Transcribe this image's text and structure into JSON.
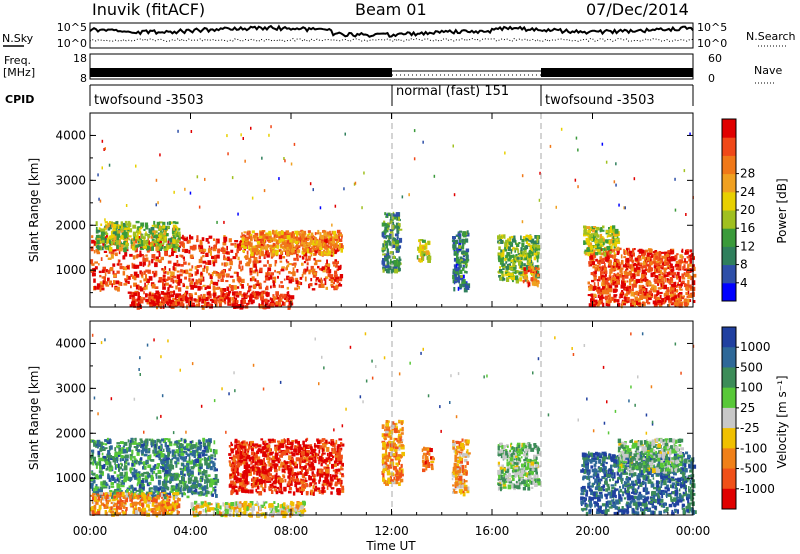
{
  "header": {
    "station": "Inuvik (fitACF)",
    "beam": "Beam 01",
    "date": "07/Dec/2014"
  },
  "status_panels": {
    "nsky_label": "N.Sky",
    "nsky_ticks": [
      "10^5",
      "10^0"
    ],
    "nsearch_label": "N.Search",
    "freq_label_1": "Freq.",
    "freq_label_2": "[MHz]",
    "freq_ticks": [
      "18",
      "8"
    ],
    "nave_ticks": [
      "60",
      "0"
    ],
    "nave_label": "Nave",
    "cpid_label": "CPID",
    "cpid_segments": [
      {
        "label": "twofsound -3503",
        "start_hour": 0,
        "end_hour": 12
      },
      {
        "label": "normal (fast) 151",
        "start_hour": 12,
        "end_hour": 18
      },
      {
        "label": "twofsound -3503",
        "start_hour": 18,
        "end_hour": 24
      }
    ]
  },
  "chart_data": [
    {
      "type": "heatmap",
      "title": "",
      "xlabel": "",
      "ylabel": "Slant Range [km]",
      "xlim": [
        0,
        24
      ],
      "ylim": [
        180,
        4500
      ],
      "yticks": [
        "1000",
        "2000",
        "3000",
        "4000"
      ],
      "colorbar_label": "Power [dB]",
      "colorbar_ticks": [
        "4",
        "8",
        "12",
        "16",
        "20",
        "24",
        "28"
      ],
      "colorbar_colors": [
        "#0000ff",
        "#2e4fa8",
        "#2f7f5c",
        "#3a9a3a",
        "#a0c020",
        "#e8d000",
        "#f0a020",
        "#f07818",
        "#f04818",
        "#e00000"
      ],
      "dashed_markers_hour": [
        12,
        18
      ],
      "echo_regions": [
        {
          "t0": 0.0,
          "t1": 10.0,
          "r0": 600,
          "r1": 1800,
          "level": 0.85
        },
        {
          "t0": 0.2,
          "t1": 3.5,
          "r0": 1500,
          "r1": 2100,
          "level": 0.45
        },
        {
          "t0": 1.5,
          "t1": 8.0,
          "r0": 220,
          "r1": 550,
          "level": 0.9
        },
        {
          "t0": 6.0,
          "t1": 10.0,
          "r0": 1400,
          "r1": 1900,
          "level": 0.7
        },
        {
          "t0": 11.6,
          "t1": 12.3,
          "r0": 1000,
          "r1": 2300,
          "level": 0.3
        },
        {
          "t0": 13.0,
          "t1": 13.5,
          "r0": 1200,
          "r1": 1700,
          "level": 0.55
        },
        {
          "t0": 14.4,
          "t1": 15.0,
          "r0": 600,
          "r1": 1900,
          "level": 0.25
        },
        {
          "t0": 16.2,
          "t1": 17.8,
          "r0": 800,
          "r1": 1800,
          "level": 0.4
        },
        {
          "t0": 17.2,
          "t1": 17.8,
          "r0": 700,
          "r1": 1100,
          "level": 0.8
        },
        {
          "t0": 19.8,
          "t1": 24.0,
          "r0": 250,
          "r1": 1500,
          "level": 0.85
        },
        {
          "t0": 19.6,
          "t1": 21.0,
          "r0": 1400,
          "r1": 2000,
          "level": 0.5
        }
      ]
    },
    {
      "type": "heatmap",
      "title": "",
      "xlabel": "Time UT",
      "ylabel": "Slant Range [km]",
      "xlim": [
        0,
        24
      ],
      "ylim": [
        180,
        4500
      ],
      "xticks": [
        "00:00",
        "04:00",
        "08:00",
        "12:00",
        "16:00",
        "20:00",
        "00:00"
      ],
      "yticks": [
        "1000",
        "2000",
        "3000",
        "4000"
      ],
      "colorbar_label": "Velocity [m s⁻¹]",
      "colorbar_ticks": [
        "1000",
        "500",
        "100",
        "25",
        "-25",
        "-100",
        "-500",
        "-1000"
      ],
      "colorbar_colors": [
        "#2040a0",
        "#2e6898",
        "#3c8c58",
        "#58c838",
        "#c8c8c8",
        "#f0c000",
        "#f08018",
        "#f05018",
        "#e00000"
      ],
      "dashed_markers_hour": [
        12,
        18
      ],
      "echo_regions": [
        {
          "t0": 0.0,
          "t1": 5.0,
          "r0": 600,
          "r1": 1900,
          "level": 0.75
        },
        {
          "t0": 5.5,
          "t1": 10.0,
          "r0": 700,
          "r1": 1900,
          "level": 0.1
        },
        {
          "t0": 4.0,
          "t1": 8.5,
          "r0": 200,
          "r1": 500,
          "level": 0.45
        },
        {
          "t0": 0.0,
          "t1": 3.5,
          "r0": 220,
          "r1": 700,
          "level": 0.3
        },
        {
          "t0": 11.6,
          "t1": 12.4,
          "r0": 900,
          "r1": 2300,
          "level": 0.3
        },
        {
          "t0": 13.2,
          "t1": 13.6,
          "r0": 1200,
          "r1": 1700,
          "level": 0.25
        },
        {
          "t0": 14.4,
          "t1": 15.0,
          "r0": 700,
          "r1": 1900,
          "level": 0.35
        },
        {
          "t0": 16.2,
          "t1": 17.8,
          "r0": 800,
          "r1": 1800,
          "level": 0.6
        },
        {
          "t0": 19.5,
          "t1": 24.0,
          "r0": 250,
          "r1": 1600,
          "level": 0.85
        },
        {
          "t0": 21.0,
          "t1": 23.5,
          "r0": 1200,
          "r1": 1900,
          "level": 0.6
        }
      ]
    }
  ]
}
